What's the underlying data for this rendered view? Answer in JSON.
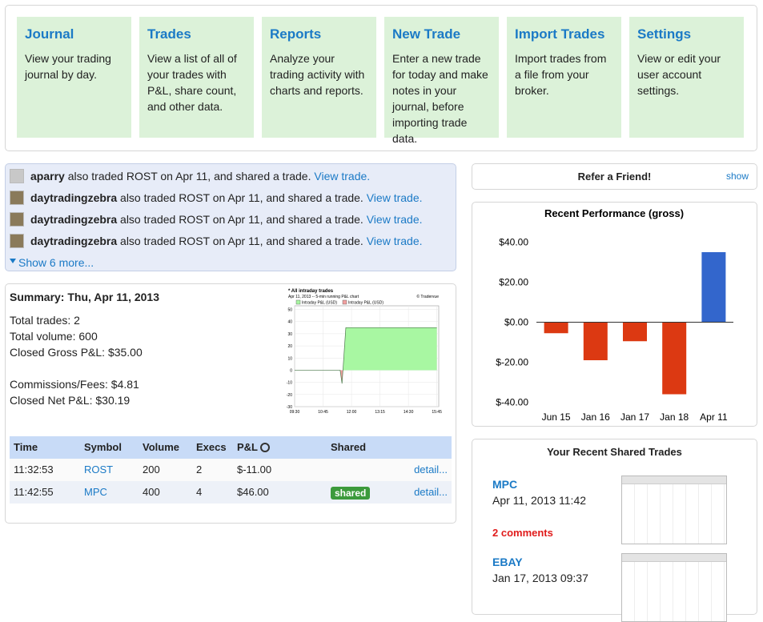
{
  "nav": [
    {
      "title": "Journal",
      "description": "View your trading journal by day."
    },
    {
      "title": "Trades",
      "description": "View a list of all of your trades with P&L, share count, and other data."
    },
    {
      "title": "Reports",
      "description": "Analyze your trading activity with charts and reports."
    },
    {
      "title": "New Trade",
      "description": "Enter a new trade for today and make notes in your journal, before importing trade data."
    },
    {
      "title": "Import Trades",
      "description": "Import trades from a file from your broker."
    },
    {
      "title": "Settings",
      "description": "View or edit your user account settings."
    }
  ],
  "activity": {
    "items": [
      {
        "user": "aparry",
        "text": "also traded ROST on Apr 11, and shared a trade.",
        "link": "View trade."
      },
      {
        "user": "daytradingzebra",
        "text": "also traded ROST on Apr 11, and shared a trade.",
        "link": "View trade."
      },
      {
        "user": "daytradingzebra",
        "text": "also traded ROST on Apr 11, and shared a trade.",
        "link": "View trade."
      },
      {
        "user": "daytradingzebra",
        "text": "also traded ROST on Apr 11, and shared a trade.",
        "link": "View trade."
      }
    ],
    "more": "Show 6 more..."
  },
  "summary": {
    "title": "Summary: Thu, Apr 11, 2013",
    "lines": [
      "Total trades: 2",
      "Total volume: 600",
      "Closed Gross P&L: $35.00"
    ],
    "lines2": [
      "Commissions/Fees: $4.81",
      "Closed Net P&L: $30.19"
    ]
  },
  "trades_table": {
    "headers": [
      "Time",
      "Symbol",
      "Volume",
      "Execs",
      "P&L",
      "Shared"
    ],
    "rows": [
      {
        "time": "11:32:53",
        "symbol": "ROST",
        "volume": "200",
        "execs": "2",
        "pnl": "$-11.00",
        "action": "detail..."
      },
      {
        "time": "11:42:55",
        "symbol": "MPC",
        "volume": "400",
        "execs": "4",
        "pnl": "$46.00",
        "shared": "shared",
        "action": "detail..."
      }
    ]
  },
  "refer": {
    "title": "Refer a Friend!",
    "action": "show"
  },
  "shared_trades": {
    "title": "Your Recent Shared Trades",
    "items": [
      {
        "symbol": "MPC",
        "date": "Apr 11, 2013 11:42",
        "comments": "2 comments"
      },
      {
        "symbol": "EBAY",
        "date": "Jan 17, 2013 09:37"
      }
    ]
  },
  "chart_data": [
    {
      "type": "bar",
      "title": "Recent Performance (gross)",
      "categories": [
        "Jun 15",
        "Jan 16",
        "Jan 17",
        "Jan 18",
        "Apr 11"
      ],
      "values": [
        -5.5,
        -19,
        -9.5,
        -36,
        35
      ],
      "colors": [
        "#dc3912",
        "#dc3912",
        "#dc3912",
        "#dc3912",
        "#3366cc"
      ],
      "ylim": [
        -43,
        47
      ],
      "yticks": [
        {
          "value": -40,
          "label": "$-40.00"
        },
        {
          "value": -20,
          "label": "$-20.00"
        },
        {
          "value": 0,
          "label": "$0.00"
        },
        {
          "value": 20,
          "label": "$20.00"
        },
        {
          "value": 40,
          "label": "$40.00"
        }
      ],
      "grid": false
    },
    {
      "type": "area",
      "title": "* All intraday trades",
      "subtitle": "Apr 11, 2013 -- 5-min running P&L chart",
      "credit": "© Tradervue",
      "x": [
        "09:30",
        "11:30",
        "11:35",
        "11:45",
        "15:45"
      ],
      "series": [
        {
          "name": "Intraday P&L (USD)",
          "color": "#a8f7a2",
          "values": [
            0,
            0,
            -11,
            35,
            35
          ]
        }
      ],
      "negative": {
        "name": "Intraday P&L (USD)",
        "color": "#f2a0a0"
      },
      "xlim": [
        "09:30",
        "15:50"
      ],
      "xticks": [
        "09:30",
        "10:45",
        "12:00",
        "13:15",
        "14:30",
        "15:45"
      ],
      "ylim": [
        -30,
        53
      ],
      "yticks": [
        -30,
        -20,
        -10,
        0,
        10,
        20,
        30,
        40,
        50
      ],
      "grid": true
    }
  ]
}
